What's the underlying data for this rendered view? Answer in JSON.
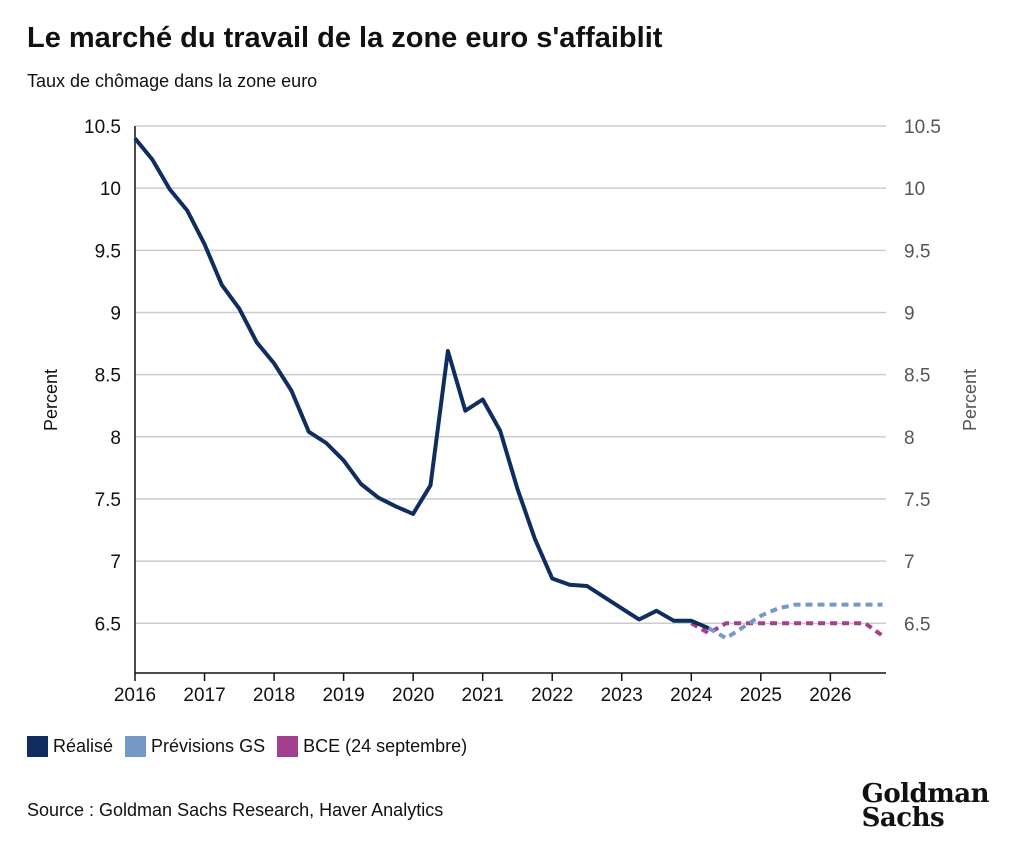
{
  "chart_data": {
    "type": "line",
    "title": "Le marché du travail de la zone euro s'affaiblit",
    "subtitle": "Taux de chômage dans la zone euro",
    "ylabel_left": "Percent",
    "ylabel_right": "Percent",
    "xlim": [
      2016,
      2026.8
    ],
    "ylim": [
      6.1,
      10.5
    ],
    "y_ticks": [
      6.5,
      7,
      7.5,
      8,
      8.5,
      9,
      9.5,
      10,
      10.5
    ],
    "y_tick_labels": [
      "6.5",
      "7",
      "7.5",
      "8",
      "8.5",
      "9",
      "9.5",
      "10",
      "10.5"
    ],
    "x_ticks": [
      2016,
      2017,
      2018,
      2019,
      2020,
      2021,
      2022,
      2023,
      2024,
      2025,
      2026
    ],
    "x_tick_labels": [
      "2016",
      "2017",
      "2018",
      "2019",
      "2020",
      "2021",
      "2022",
      "2023",
      "2024",
      "2025",
      "2026"
    ],
    "grid": "horizontal",
    "series": [
      {
        "name": "Réalisé",
        "color": "#0f2d5e",
        "style": "solid",
        "points": [
          [
            2016.0,
            10.4
          ],
          [
            2016.25,
            10.23
          ],
          [
            2016.5,
            9.99
          ],
          [
            2016.75,
            9.82
          ],
          [
            2017.0,
            9.55
          ],
          [
            2017.25,
            9.22
          ],
          [
            2017.5,
            9.03
          ],
          [
            2017.75,
            8.76
          ],
          [
            2018.0,
            8.59
          ],
          [
            2018.25,
            8.37
          ],
          [
            2018.5,
            8.04
          ],
          [
            2018.75,
            7.95
          ],
          [
            2019.0,
            7.81
          ],
          [
            2019.25,
            7.62
          ],
          [
            2019.5,
            7.51
          ],
          [
            2019.75,
            7.44
          ],
          [
            2020.0,
            7.38
          ],
          [
            2020.25,
            7.61
          ],
          [
            2020.5,
            8.69
          ],
          [
            2020.75,
            8.21
          ],
          [
            2021.0,
            8.3
          ],
          [
            2021.25,
            8.05
          ],
          [
            2021.5,
            7.58
          ],
          [
            2021.75,
            7.18
          ],
          [
            2022.0,
            6.86
          ],
          [
            2022.25,
            6.81
          ],
          [
            2022.5,
            6.8
          ],
          [
            2022.75,
            6.71
          ],
          [
            2023.0,
            6.62
          ],
          [
            2023.25,
            6.53
          ],
          [
            2023.5,
            6.6
          ],
          [
            2023.75,
            6.52
          ],
          [
            2024.0,
            6.52
          ],
          [
            2024.25,
            6.46
          ]
        ]
      },
      {
        "name": "Prévisions GS",
        "color": "#7499c6",
        "style": "dashed",
        "points": [
          [
            2024.25,
            6.46
          ],
          [
            2024.5,
            6.38
          ],
          [
            2024.75,
            6.47
          ],
          [
            2025.0,
            6.56
          ],
          [
            2025.25,
            6.62
          ],
          [
            2025.5,
            6.65
          ],
          [
            2025.75,
            6.65
          ],
          [
            2026.0,
            6.65
          ],
          [
            2026.25,
            6.65
          ],
          [
            2026.5,
            6.65
          ],
          [
            2026.75,
            6.65
          ]
        ]
      },
      {
        "name": "BCE (24 septembre)",
        "color": "#a33f8f",
        "style": "dashed",
        "points": [
          [
            2024.0,
            6.5
          ],
          [
            2024.25,
            6.42
          ],
          [
            2024.5,
            6.5
          ],
          [
            2024.75,
            6.5
          ],
          [
            2025.0,
            6.5
          ],
          [
            2025.25,
            6.5
          ],
          [
            2025.5,
            6.5
          ],
          [
            2025.75,
            6.5
          ],
          [
            2026.0,
            6.5
          ],
          [
            2026.25,
            6.5
          ],
          [
            2026.5,
            6.5
          ],
          [
            2026.75,
            6.4
          ]
        ]
      }
    ],
    "legend": [
      "Réalisé",
      "Prévisions GS",
      "BCE (24 septembre)"
    ],
    "legend_position": "bottom-left"
  },
  "footer": {
    "source": "Source : Goldman Sachs Research, Haver Analytics",
    "logo_line1": "Goldman",
    "logo_line2": "Sachs"
  }
}
